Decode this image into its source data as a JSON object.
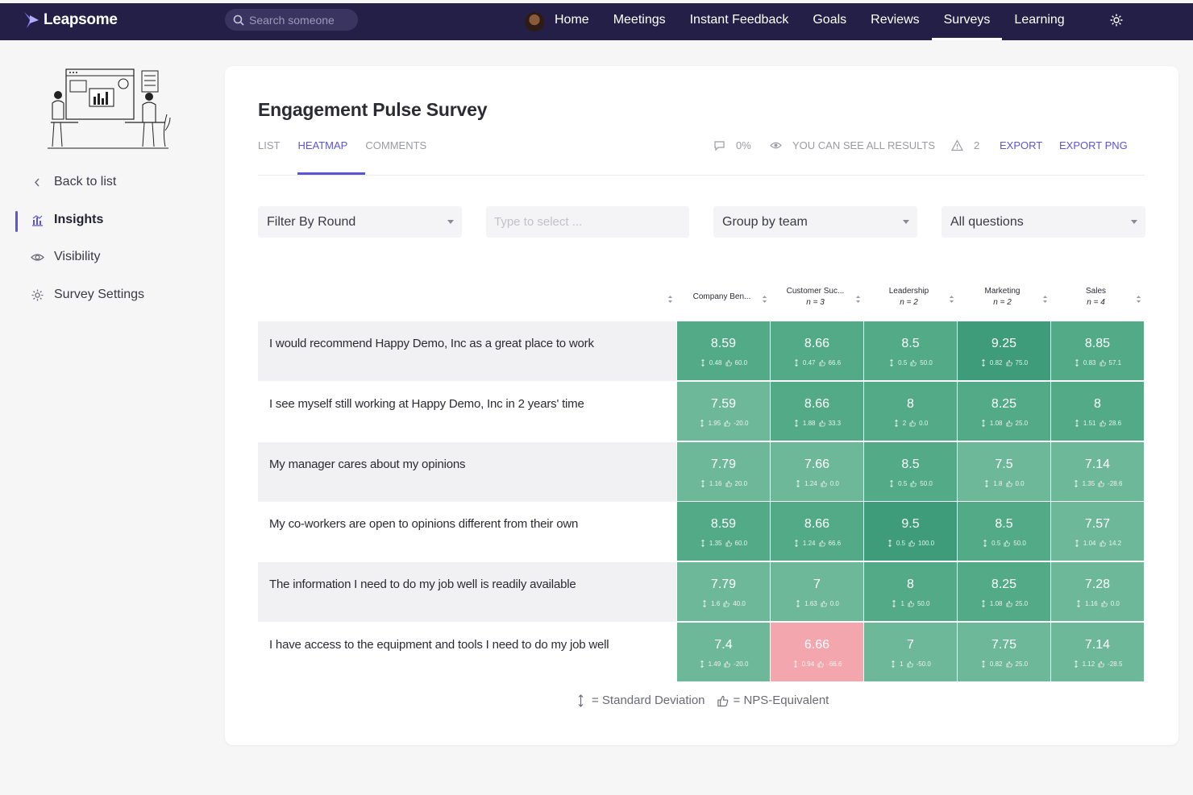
{
  "brand": {
    "name": "Leapsome"
  },
  "search": {
    "placeholder": "Search someone"
  },
  "nav": {
    "items": [
      {
        "label": "Home",
        "active": false
      },
      {
        "label": "Meetings",
        "active": false
      },
      {
        "label": "Instant Feedback",
        "active": false
      },
      {
        "label": "Goals",
        "active": false
      },
      {
        "label": "Reviews",
        "active": false
      },
      {
        "label": "Surveys",
        "active": true
      },
      {
        "label": "Learning",
        "active": false
      }
    ]
  },
  "sidebar": {
    "items": [
      {
        "label": "Back to list",
        "icon": "chevron-left-icon",
        "active": false
      },
      {
        "label": "Insights",
        "icon": "chart-icon",
        "active": true
      },
      {
        "label": "Visibility",
        "icon": "eye-icon",
        "active": false
      },
      {
        "label": "Survey Settings",
        "icon": "gear-icon",
        "active": false
      }
    ]
  },
  "survey": {
    "title": "Engagement Pulse Survey",
    "tabs": [
      {
        "label": "LIST",
        "active": false
      },
      {
        "label": "HEATMAP",
        "active": true
      },
      {
        "label": "COMMENTS",
        "active": false
      }
    ],
    "comment_rate": "0%",
    "visibility_note": "YOU CAN SEE ALL RESULTS",
    "warning_count": "2",
    "export_label": "EXPORT",
    "export_png_label": "EXPORT PNG"
  },
  "filters": {
    "round": "Filter By Round",
    "type_placeholder": "Type to select ...",
    "group": "Group by team",
    "questions": "All questions"
  },
  "colors": {
    "accent": "#5a55d6",
    "nav_bg": "#241f46",
    "cell_dark": "#3e9c7a",
    "cell_mid": "#53aa86",
    "cell_light": "#6db899",
    "cell_negative": "#f3a6ad"
  },
  "chart_data": {
    "type": "heatmap",
    "columns": [
      {
        "label": "Company Ben...",
        "n": ""
      },
      {
        "label": "Customer Suc...",
        "n": "n = 3"
      },
      {
        "label": "Leadership",
        "n": "n = 2"
      },
      {
        "label": "Marketing",
        "n": "n = 2"
      },
      {
        "label": "Sales",
        "n": "n = 4"
      }
    ],
    "rows": [
      {
        "question": "I would recommend Happy Demo, Inc as a great place to work",
        "cells": [
          {
            "value": "8.59",
            "sd": "0.48",
            "nps": "60.0",
            "tone": "mid"
          },
          {
            "value": "8.66",
            "sd": "0.47",
            "nps": "66.6",
            "tone": "mid"
          },
          {
            "value": "8.5",
            "sd": "0.5",
            "nps": "50.0",
            "tone": "mid"
          },
          {
            "value": "9.25",
            "sd": "0.82",
            "nps": "75.0",
            "tone": "dark"
          },
          {
            "value": "8.85",
            "sd": "0.83",
            "nps": "57.1",
            "tone": "mid"
          }
        ]
      },
      {
        "question": "I see myself still working at Happy Demo, Inc in 2 years' time",
        "cells": [
          {
            "value": "7.59",
            "sd": "1.95",
            "nps": "-20.0",
            "tone": "light"
          },
          {
            "value": "8.66",
            "sd": "1.88",
            "nps": "33.3",
            "tone": "mid"
          },
          {
            "value": "8",
            "sd": "2",
            "nps": "0.0",
            "tone": "mid"
          },
          {
            "value": "8.25",
            "sd": "1.08",
            "nps": "25.0",
            "tone": "mid"
          },
          {
            "value": "8",
            "sd": "1.51",
            "nps": "28.6",
            "tone": "mid"
          }
        ]
      },
      {
        "question": "My manager cares about my opinions",
        "cells": [
          {
            "value": "7.79",
            "sd": "1.16",
            "nps": "20.0",
            "tone": "light"
          },
          {
            "value": "7.66",
            "sd": "1.24",
            "nps": "0.0",
            "tone": "light"
          },
          {
            "value": "8.5",
            "sd": "0.5",
            "nps": "50.0",
            "tone": "mid"
          },
          {
            "value": "7.5",
            "sd": "1.8",
            "nps": "0.0",
            "tone": "light"
          },
          {
            "value": "7.14",
            "sd": "1.35",
            "nps": "-28.6",
            "tone": "light"
          }
        ]
      },
      {
        "question": "My co-workers are open to opinions different from their own",
        "cells": [
          {
            "value": "8.59",
            "sd": "1.35",
            "nps": "60.0",
            "tone": "mid"
          },
          {
            "value": "8.66",
            "sd": "1.24",
            "nps": "66.6",
            "tone": "mid"
          },
          {
            "value": "9.5",
            "sd": "0.5",
            "nps": "100.0",
            "tone": "dark"
          },
          {
            "value": "8.5",
            "sd": "0.5",
            "nps": "50.0",
            "tone": "mid"
          },
          {
            "value": "7.57",
            "sd": "1.04",
            "nps": "14.2",
            "tone": "light"
          }
        ]
      },
      {
        "question": "The information I need to do my job well is readily available",
        "cells": [
          {
            "value": "7.79",
            "sd": "1.6",
            "nps": "40.0",
            "tone": "light"
          },
          {
            "value": "7",
            "sd": "1.63",
            "nps": "0.0",
            "tone": "light"
          },
          {
            "value": "8",
            "sd": "1",
            "nps": "50.0",
            "tone": "mid"
          },
          {
            "value": "8.25",
            "sd": "1.08",
            "nps": "25.0",
            "tone": "mid"
          },
          {
            "value": "7.28",
            "sd": "1.16",
            "nps": "0.0",
            "tone": "light"
          }
        ]
      },
      {
        "question": "I have access to the equipment and tools I need to do my job well",
        "cells": [
          {
            "value": "7.4",
            "sd": "1.49",
            "nps": "-20.0",
            "tone": "light"
          },
          {
            "value": "6.66",
            "sd": "0.94",
            "nps": "-66.6",
            "tone": "negative"
          },
          {
            "value": "7",
            "sd": "1",
            "nps": "-50.0",
            "tone": "light"
          },
          {
            "value": "7.75",
            "sd": "0.82",
            "nps": "25.0",
            "tone": "light"
          },
          {
            "value": "7.14",
            "sd": "1.12",
            "nps": "-28.5",
            "tone": "light"
          }
        ]
      }
    ]
  },
  "legend": {
    "sd_label": "= Standard Deviation",
    "nps_label": "= NPS-Equivalent"
  }
}
